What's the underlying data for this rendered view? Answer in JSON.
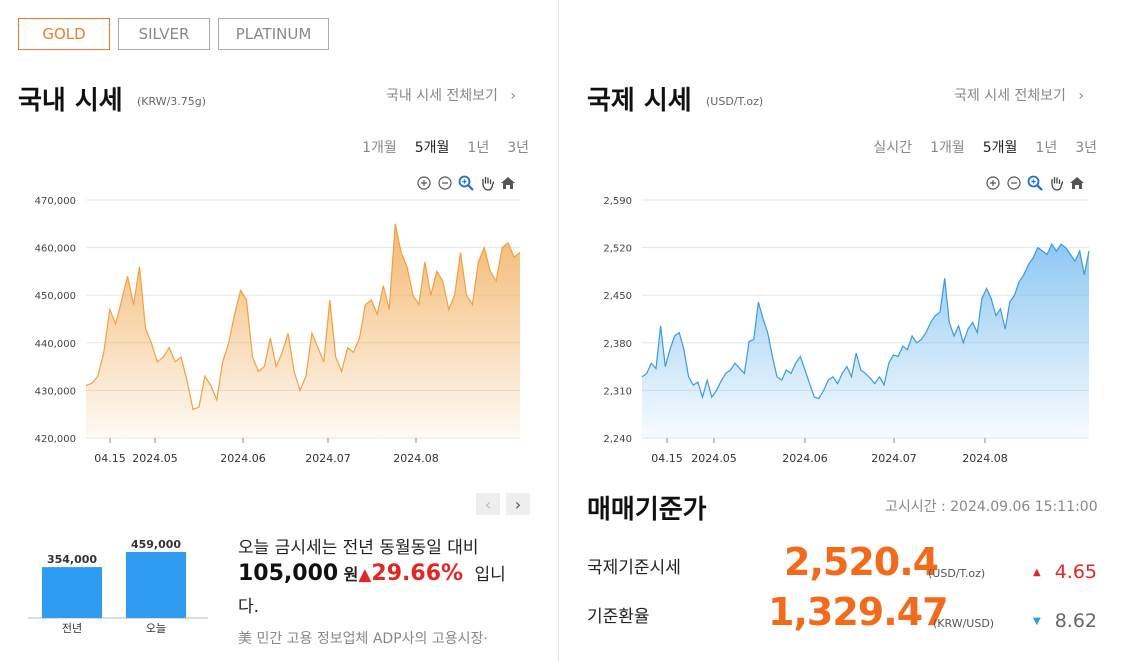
{
  "tabs": [
    {
      "label": "GOLD",
      "active": true
    },
    {
      "label": "SILVER",
      "active": false
    },
    {
      "label": "PLATINUM",
      "active": false
    }
  ],
  "domestic": {
    "title": "국내 시세",
    "unit": "(KRW/3.75g)",
    "view_all": "국내 시세 전체보기",
    "periods": [
      {
        "label": "1개월",
        "active": false
      },
      {
        "label": "5개월",
        "active": true
      },
      {
        "label": "1년",
        "active": false
      },
      {
        "label": "3년",
        "active": false
      }
    ]
  },
  "international": {
    "title": "국제 시세",
    "unit": "(USD/T.oz)",
    "view_all": "국제 시세 전체보기",
    "periods": [
      {
        "label": "실시간",
        "active": false
      },
      {
        "label": "1개월",
        "active": false
      },
      {
        "label": "5개월",
        "active": true
      },
      {
        "label": "1년",
        "active": false
      },
      {
        "label": "3년",
        "active": false
      }
    ]
  },
  "chart_toolbar": [
    "zoom-in-icon",
    "zoom-out-icon",
    "magnifier-icon",
    "hand-pan-icon",
    "home-icon"
  ],
  "colors": {
    "accent": "#ef7b2c",
    "domestic_line": "#f0a040",
    "intl_line": "#3a9be0",
    "up": "#e12626",
    "down": "#2a9de6",
    "bar": "#2e9af0"
  },
  "chart_data": [
    {
      "type": "area",
      "name": "domestic",
      "ylim": [
        420000,
        470000
      ],
      "yticks": [
        "470,000",
        "460,000",
        "450,000",
        "440,000",
        "430,000",
        "420,000"
      ],
      "xticks": [
        "04.15",
        "2024.05",
        "2024.06",
        "2024.07",
        "2024.08"
      ],
      "grid": true,
      "values": [
        431000,
        431500,
        433000,
        438000,
        447000,
        444000,
        449000,
        454000,
        448000,
        456000,
        443000,
        440000,
        436000,
        437000,
        439000,
        436000,
        437000,
        432000,
        426000,
        426500,
        433000,
        431000,
        428000,
        436000,
        440000,
        446000,
        451000,
        449000,
        437000,
        434000,
        435000,
        441000,
        435000,
        438000,
        442000,
        434000,
        430000,
        433000,
        442000,
        439000,
        436000,
        449000,
        437000,
        434000,
        439000,
        438000,
        441000,
        448000,
        449000,
        446000,
        452000,
        447000,
        465000,
        459000,
        456000,
        450000,
        448000,
        457000,
        450000,
        455000,
        453000,
        447000,
        450000,
        459000,
        450000,
        448000,
        457000,
        460000,
        455000,
        453000,
        460000,
        461000,
        458000,
        459000
      ]
    },
    {
      "type": "area",
      "name": "international",
      "ylim": [
        2240,
        2590
      ],
      "yticks": [
        "2,590",
        "2,520",
        "2,450",
        "2,380",
        "2,310",
        "2,240"
      ],
      "xticks": [
        "04.15",
        "2024.05",
        "2024.06",
        "2024.07",
        "2024.08"
      ],
      "grid": true,
      "values": [
        2330,
        2335,
        2350,
        2342,
        2405,
        2345,
        2370,
        2390,
        2395,
        2370,
        2330,
        2318,
        2322,
        2300,
        2325,
        2300,
        2310,
        2324,
        2335,
        2340,
        2350,
        2342,
        2335,
        2382,
        2385,
        2440,
        2415,
        2395,
        2360,
        2330,
        2325,
        2340,
        2335,
        2350,
        2360,
        2340,
        2320,
        2300,
        2298,
        2310,
        2325,
        2330,
        2320,
        2335,
        2345,
        2330,
        2365,
        2340,
        2335,
        2328,
        2320,
        2330,
        2318,
        2350,
        2362,
        2360,
        2375,
        2370,
        2390,
        2380,
        2385,
        2395,
        2410,
        2420,
        2425,
        2475,
        2410,
        2390,
        2405,
        2380,
        2400,
        2410,
        2395,
        2445,
        2460,
        2445,
        2420,
        2430,
        2400,
        2440,
        2450,
        2470,
        2480,
        2495,
        2505,
        2520,
        2515,
        2510,
        2525,
        2515,
        2525,
        2520,
        2510,
        2500,
        2515,
        2480,
        2515
      ]
    },
    {
      "type": "bar",
      "name": "year-comparison",
      "categories": [
        "전년",
        "오늘"
      ],
      "values": [
        354000,
        459000
      ],
      "value_labels": [
        "354,000",
        "459,000"
      ]
    }
  ],
  "pager": {
    "prev": "‹",
    "next": "›"
  },
  "news": {
    "line1": "오늘 금시세는 전년 동월동일 대비",
    "amount": "105,000",
    "won": "원",
    "arrow": "▲",
    "percent": "29.66%",
    "suffix": "입니",
    "line3": "다.",
    "headline": "美 민간 고용 정보업체 ADP사의 고용시장·"
  },
  "base_price": {
    "title": "매매기준가",
    "notice": "고시시간 : 2024.09.06 15:11:00",
    "rows": [
      {
        "label": "국제기준시세",
        "value": "2,520.4",
        "unit": "(USD/T.oz)",
        "arrow": "▲",
        "change": "4.65",
        "dir": "up"
      },
      {
        "label": "기준환율",
        "value": "1,329.47",
        "unit": "(KRW/USD)",
        "arrow": "▼",
        "change": "8.62",
        "dir": "down"
      }
    ]
  }
}
